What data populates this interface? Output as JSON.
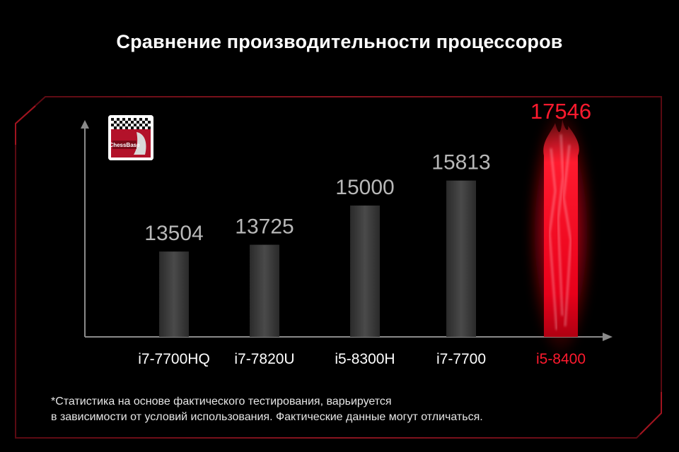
{
  "title": "Сравнение производительности процессоров",
  "logo": {
    "name": "ChessBase",
    "colors": {
      "red": "#b3122a",
      "black": "#111111",
      "white": "#ffffff"
    }
  },
  "footnote": {
    "line1": "*Статистика на основе фактического тестирования, варьируется",
    "line2": "в зависимости от условий  использования. Фактические данные могут отличаться."
  },
  "colors": {
    "background": "#000000",
    "bar": "#3a3a3a",
    "highlight": "#ff1a2e",
    "frame": "#7a0f18",
    "axis": "#8a8a8a"
  },
  "chart_data": {
    "type": "bar",
    "title": "Сравнение производительности процессоров",
    "categories": [
      "i7-7700HQ",
      "i7-7820U",
      "i5-8300H",
      "i7-7700",
      "i5-8400"
    ],
    "values": [
      13504,
      13725,
      15000,
      15813,
      17546
    ],
    "value_labels": [
      "13504",
      "13725",
      "15000",
      "15813",
      "17546"
    ],
    "highlight_index": 4,
    "xlabel": "",
    "ylabel": "",
    "grid": false
  }
}
